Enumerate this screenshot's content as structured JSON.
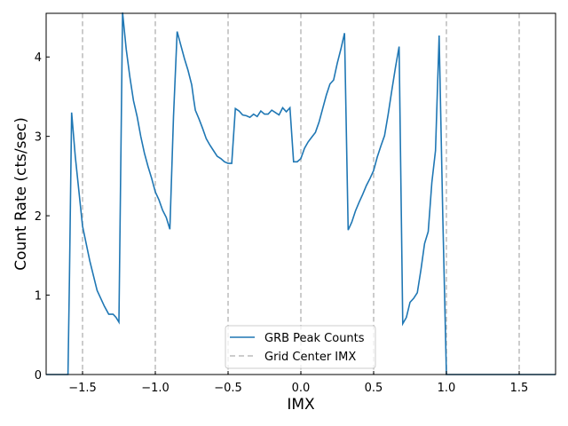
{
  "chart_data": {
    "type": "line",
    "xlabel": "IMX",
    "ylabel": "Count Rate (cts/sec)",
    "xlim": [
      -1.75,
      1.75
    ],
    "ylim": [
      0,
      4.55
    ],
    "x_ticks": [
      -1.5,
      -1.0,
      -0.5,
      0.0,
      0.5,
      1.0,
      1.5
    ],
    "x_tick_labels": [
      "−1.5",
      "−1.0",
      "−0.5",
      "0.0",
      "0.5",
      "1.0",
      "1.5"
    ],
    "y_ticks": [
      0,
      1,
      2,
      3,
      4
    ],
    "y_tick_labels": [
      "0",
      "1",
      "2",
      "3",
      "4"
    ],
    "grid": false,
    "legend_position": "bottom-center",
    "series": [
      {
        "name": "GRB Peak Counts",
        "color": "#1f77b4",
        "x": [
          -1.75,
          -1.6,
          -1.59,
          -1.575,
          -1.55,
          -1.5,
          -1.45,
          -1.4,
          -1.35,
          -1.32,
          -1.29,
          -1.27,
          -1.25,
          -1.225,
          -1.2,
          -1.175,
          -1.15,
          -1.125,
          -1.1,
          -1.075,
          -1.05,
          -1.025,
          -1.0,
          -0.975,
          -0.95,
          -0.925,
          -0.9,
          -0.875,
          -0.85,
          -0.825,
          -0.8,
          -0.775,
          -0.75,
          -0.735,
          -0.725,
          -0.7,
          -0.675,
          -0.65,
          -0.625,
          -0.6,
          -0.575,
          -0.55,
          -0.525,
          -0.5,
          -0.475,
          -0.45,
          -0.425,
          -0.4,
          -0.375,
          -0.35,
          -0.325,
          -0.3,
          -0.275,
          -0.25,
          -0.225,
          -0.2,
          -0.175,
          -0.15,
          -0.125,
          -0.1,
          -0.075,
          -0.05,
          -0.025,
          0.0,
          0.025,
          0.05,
          0.075,
          0.1,
          0.125,
          0.15,
          0.175,
          0.2,
          0.225,
          0.25,
          0.275,
          0.3,
          0.325,
          0.35,
          0.375,
          0.4,
          0.425,
          0.45,
          0.475,
          0.5,
          0.525,
          0.55,
          0.575,
          0.6,
          0.625,
          0.65,
          0.675,
          0.7,
          0.725,
          0.75,
          0.775,
          0.8,
          0.825,
          0.85,
          0.875,
          0.9,
          0.925,
          0.95,
          0.975,
          1.0,
          1.025,
          1.05,
          1.075,
          1.1,
          1.125,
          1.15,
          1.175,
          1.2,
          1.225,
          1.25,
          1.275,
          1.3,
          1.325,
          1.35,
          1.375,
          1.4,
          1.425,
          1.45,
          1.475,
          1.5,
          1.525,
          1.55,
          1.575,
          1.6,
          1.615,
          1.625,
          1.65,
          1.7,
          1.75
        ],
        "y": [
          0.0,
          0.0,
          1.2,
          3.3,
          2.75,
          1.87,
          1.43,
          1.06,
          0.86,
          0.76,
          0.76,
          0.72,
          0.66,
          4.56,
          4.1,
          3.75,
          3.45,
          3.25,
          3.0,
          2.79,
          2.62,
          2.47,
          2.3,
          2.2,
          2.07,
          1.98,
          1.83,
          3.25,
          4.32,
          4.15,
          3.98,
          3.83,
          3.65,
          3.45,
          3.33,
          3.22,
          3.1,
          2.97,
          2.89,
          2.82,
          2.75,
          2.72,
          2.68,
          2.66,
          2.66,
          3.35,
          3.32,
          3.27,
          3.26,
          3.24,
          3.28,
          3.25,
          3.32,
          3.28,
          3.28,
          3.33,
          3.3,
          3.27,
          3.36,
          3.31,
          3.36,
          2.68,
          2.68,
          2.72,
          2.85,
          2.93,
          2.99,
          3.05,
          3.18,
          3.35,
          3.52,
          3.66,
          3.71,
          3.92,
          4.1,
          4.3,
          1.82,
          1.92,
          2.06,
          2.17,
          2.27,
          2.38,
          2.47,
          2.57,
          2.74,
          2.88,
          3.01,
          3.28,
          3.58,
          3.87,
          4.13,
          0.64,
          0.72,
          0.91,
          0.96,
          1.03,
          1.32,
          1.65,
          1.8,
          2.42,
          2.82,
          4.27,
          2.0,
          0.0,
          0.0,
          0.0,
          0.0,
          0.0,
          0.0,
          0.0,
          0.0,
          0.0,
          0.0,
          0.0,
          0.0,
          0.0,
          0.0,
          0.0,
          0.0,
          0.0,
          0.0,
          0.0,
          0.0,
          0.0,
          0.0,
          0.0,
          0.0,
          0.0,
          0.0,
          0.0,
          0.0,
          0.0,
          0.0
        ]
      },
      {
        "name": "Grid Center IMX",
        "color": "#bbbbbb",
        "style": "dashed",
        "x_lines": [
          -1.5,
          -1.0,
          -0.5,
          0.0,
          0.5,
          1.0,
          1.5
        ]
      }
    ]
  },
  "legend": {
    "items": [
      {
        "label": "GRB Peak Counts",
        "color": "#1f77b4",
        "style": "solid"
      },
      {
        "label": "Grid Center IMX",
        "color": "#bbbbbb",
        "style": "dashed"
      }
    ]
  }
}
